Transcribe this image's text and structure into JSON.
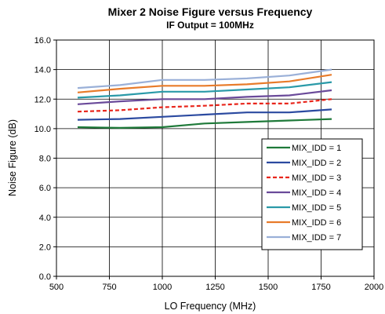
{
  "chart_data": {
    "type": "line",
    "title": "Mixer 2 Noise Figure versus Frequency",
    "subtitle": "IF Output = 100MHz",
    "xlabel": "LO Frequency (MHz)",
    "ylabel": "Noise Figure (dB)",
    "xlim": [
      500,
      2000
    ],
    "ylim": [
      0,
      16
    ],
    "xticks": [
      "500",
      "750",
      "1000",
      "1250",
      "1500",
      "1750",
      "2000"
    ],
    "yticks": [
      "0.0",
      "2.0",
      "4.0",
      "6.0",
      "8.0",
      "10.0",
      "12.0",
      "14.0",
      "16.0"
    ],
    "grid": true,
    "legend_position": "right-middle",
    "x": [
      600,
      800,
      1000,
      1200,
      1400,
      1600,
      1800
    ],
    "series": [
      {
        "name": "MIX_IDD = 1",
        "color": "#1f7a3a",
        "dashed": false,
        "values": [
          10.1,
          10.05,
          10.1,
          10.35,
          10.45,
          10.55,
          10.65
        ]
      },
      {
        "name": "MIX_IDD = 2",
        "color": "#2b4aa0",
        "dashed": false,
        "values": [
          10.6,
          10.65,
          10.8,
          10.95,
          11.1,
          11.1,
          11.3
        ]
      },
      {
        "name": "MIX_IDD = 3",
        "color": "#e8261c",
        "dashed": true,
        "values": [
          11.15,
          11.25,
          11.45,
          11.55,
          11.7,
          11.7,
          12.0
        ]
      },
      {
        "name": "MIX_IDD = 4",
        "color": "#6a4a9a",
        "dashed": false,
        "values": [
          11.65,
          11.85,
          12.0,
          12.0,
          12.15,
          12.25,
          12.6
        ]
      },
      {
        "name": "MIX_IDD = 5",
        "color": "#2a9aa8",
        "dashed": false,
        "values": [
          12.1,
          12.25,
          12.5,
          12.5,
          12.65,
          12.8,
          13.15
        ]
      },
      {
        "name": "MIX_IDD = 6",
        "color": "#e87b2a",
        "dashed": false,
        "values": [
          12.45,
          12.7,
          12.9,
          12.9,
          13.0,
          13.2,
          13.65
        ]
      },
      {
        "name": "MIX_IDD = 7",
        "color": "#9ab0d8",
        "dashed": false,
        "values": [
          12.75,
          12.95,
          13.3,
          13.3,
          13.4,
          13.6,
          14.0
        ]
      }
    ]
  }
}
